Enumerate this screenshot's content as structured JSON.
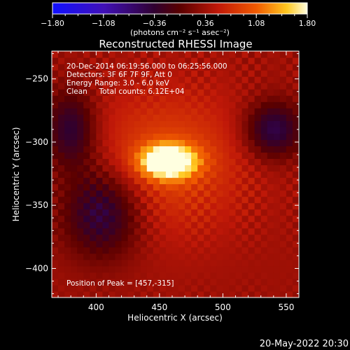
{
  "chart_data": {
    "type": "heatmap",
    "title": "Reconstructed RHESSI Image",
    "xlabel": "Heliocentric X (arcsec)",
    "ylabel": "Heliocentric Y (arcsec)",
    "xlim": [
      365,
      560
    ],
    "ylim": [
      -423,
      -228
    ],
    "x_ticks": [
      400,
      450,
      500,
      550
    ],
    "y_ticks": [
      -250,
      -300,
      -350,
      -400
    ],
    "colorbar": {
      "min": -1.8,
      "max": 1.8,
      "ticks": [
        "-1.80",
        "-1.08",
        "-0.36",
        "0.36",
        "1.08",
        "1.80"
      ],
      "unit_label": "(photons cm⁻² s⁻¹ asec⁻²)"
    },
    "annotations": {
      "time_range": "20-Dec-2014 06:19:56.000 to 06:25:56.000",
      "detectors": "Detectors: 3F 6F 7F 9F, Att 0",
      "energy": "Energy Range: 3.0 - 6.0 keV",
      "clean": "Clean     Total counts: 6.12E+04",
      "peak": "Position of Peak = [457,-315]"
    },
    "peak_position": [
      457,
      -315
    ],
    "source": {
      "x": 457,
      "y": -315,
      "sigma_x": 15,
      "sigma_y": 9,
      "peak_value": 1.8
    },
    "negative_regions": [
      {
        "x": 405,
        "y": -355,
        "sigma_x": 22,
        "sigma_y": 25,
        "value": -0.55
      },
      {
        "x": 380,
        "y": -290,
        "sigma_x": 14,
        "sigma_y": 22,
        "value": -0.45
      },
      {
        "x": 540,
        "y": -290,
        "sigma_x": 16,
        "sigma_y": 16,
        "value": -0.55
      }
    ],
    "footer_date": "20-May-2022 20:30"
  }
}
